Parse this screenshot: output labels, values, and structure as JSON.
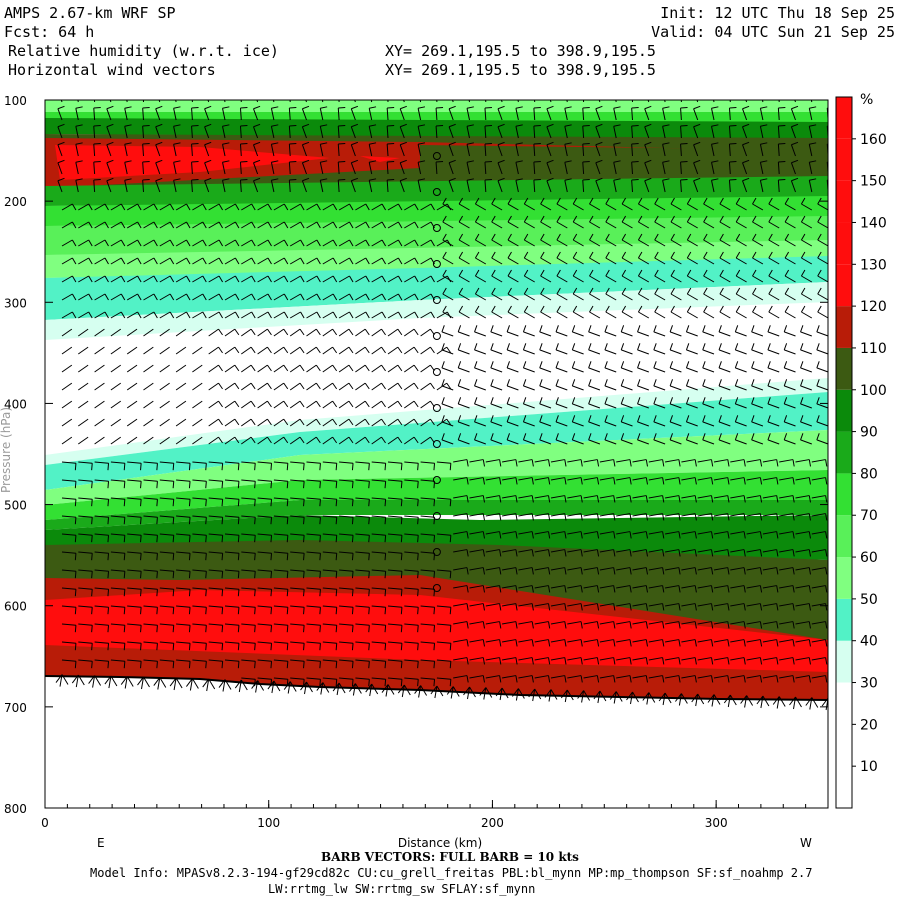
{
  "header": {
    "title": "AMPS 2.67-km WRF SP",
    "forecast": "Fcst:   64 h",
    "field1": "Relative humidity (w.r.t. ice)",
    "field2": "Horizontal wind vectors",
    "init": "Init: 12 UTC Thu 18 Sep 25",
    "valid": "Valid: 04 UTC Sun 21 Sep 25",
    "xy1": "XY= 269.1,195.5 to 398.9,195.5",
    "xy2": "XY= 269.1,195.5 to 398.9,195.5"
  },
  "chart_data": {
    "type": "heatmap",
    "title": "Relative humidity (w.r.t. ice) with horizontal wind barbs, vertical cross-section",
    "xlabel": "Distance (km)",
    "ylabel": "Pressure (hPa)",
    "xlim": [
      0,
      350
    ],
    "ylim": [
      800,
      100
    ],
    "x_ticks": [
      "0",
      "100",
      "200",
      "300"
    ],
    "y_ticks": [
      "100",
      "200",
      "300",
      "400",
      "500",
      "600",
      "700",
      "800"
    ],
    "left_end_label": "E",
    "right_end_label": "W",
    "colorbar": {
      "unit": "%",
      "levels": [
        10,
        20,
        30,
        40,
        50,
        60,
        70,
        80,
        90,
        100,
        110,
        120,
        130,
        140,
        150,
        160
      ],
      "labels": [
        "10",
        "20",
        "30",
        "40",
        "50",
        "60",
        "70",
        "80",
        "90",
        "100",
        "110",
        "120",
        "130",
        "140",
        "150",
        "160"
      ],
      "colors": [
        "#ffffff",
        "#ffffff",
        "#ffffff",
        "#d6fff0",
        "#52f2c6",
        "#80ff80",
        "#59f059",
        "#33e033",
        "#1aaa1a",
        "#0b8a0b",
        "#3c5a12",
        "#b81c08",
        "#ff0d0d",
        "#ff0d0d",
        "#ff0d0d",
        "#ff0d0d",
        "#ff0d0d"
      ]
    },
    "rh_bands_left": [
      {
        "from_hPa": 100,
        "to_hPa": 130,
        "range": "70-90"
      },
      {
        "from_hPa": 130,
        "to_hPa": 185,
        "range": "120-160"
      },
      {
        "from_hPa": 185,
        "to_hPa": 260,
        "range": "50-80"
      },
      {
        "from_hPa": 260,
        "to_hPa": 330,
        "range": "40-50"
      },
      {
        "from_hPa": 330,
        "to_hPa": 440,
        "range": "20-30"
      },
      {
        "from_hPa": 440,
        "to_hPa": 520,
        "range": "40-80"
      },
      {
        "from_hPa": 520,
        "to_hPa": 575,
        "range": "90-110"
      },
      {
        "from_hPa": 575,
        "to_hPa": 675,
        "range": "120-160"
      }
    ],
    "terrain_hPa": {
      "x_km": [
        0,
        350
      ],
      "p": [
        671,
        694
      ]
    },
    "footer": {
      "barb": "BARB VECTORS:  FULL BARB = 10 kts",
      "model": "Model Info: MPASv8.2.3-194-gf29cd82c CU:cu_grell_freitas PBL:bl_mynn MP:mp_thompson SF:sf_noahmp 2.7",
      "physics": "LW:rrtmg_lw SW:rrtmg_sw SFLAY:sf_mynn"
    }
  }
}
